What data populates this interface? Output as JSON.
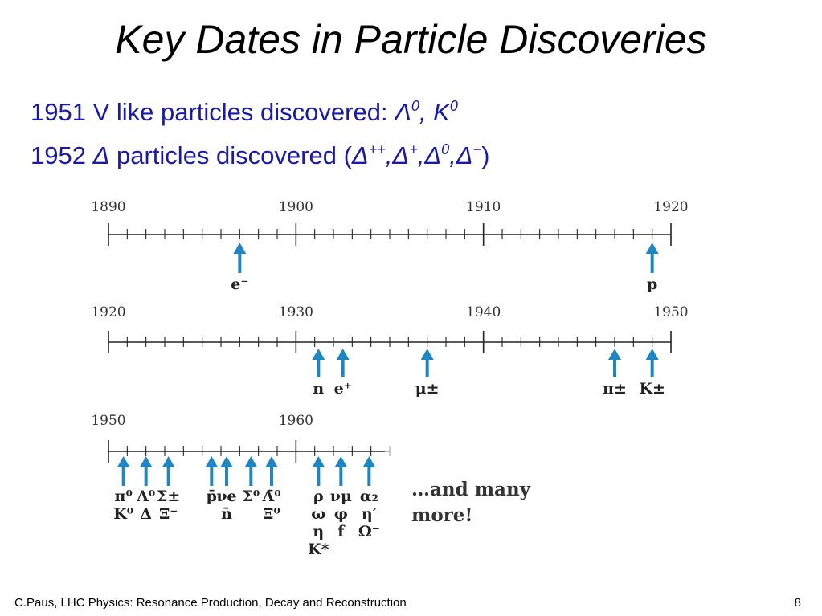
{
  "slide": {
    "title": "Key Dates in Particle Discoveries",
    "line1": {
      "text": "1951 V like particles discovered: ",
      "p1": "Λ",
      "p1_sup": "0",
      "sep": ", ",
      "p2": "K",
      "p2_sup": "0"
    },
    "line2": {
      "year": "1952 ",
      "delta": "Δ",
      "text": " particles discovered (",
      "d1": "Δ",
      "d1_sup": "++",
      "c1": ",",
      "d2": "Δ",
      "d2_sup": "+",
      "c2": ",",
      "d3": "Δ",
      "d3_sup": "0",
      "c3": ",",
      "d4": "Δ",
      "d4_sup": "−",
      "close": ")"
    },
    "footer_left": "C.Paus, LHC Physics:  Resonance Production, Decay and Reconstruction",
    "page_number": "8"
  },
  "colors": {
    "title": "#000000",
    "bullet_text": "#1a1aa6",
    "arrow": "#1f86c2",
    "timeline": "#222222"
  },
  "timelines": [
    {
      "decade_labels": [
        "1890",
        "1900",
        "1910",
        "1920"
      ],
      "discoveries": [
        {
          "year": 1897,
          "label": "e⁻"
        },
        {
          "year": 1919,
          "label": "p"
        }
      ]
    },
    {
      "decade_labels": [
        "1920",
        "1930",
        "1940",
        "1950"
      ],
      "discoveries": [
        {
          "year": 1931.2,
          "label": "n"
        },
        {
          "year": 1932.5,
          "label": "e⁺"
        },
        {
          "year": 1937,
          "label": "μ±"
        },
        {
          "year": 1947,
          "label": "π±"
        },
        {
          "year": 1949,
          "label": "K±"
        }
      ]
    },
    {
      "decade_labels": [
        "1950",
        "1960"
      ],
      "discoveries": [
        {
          "year": 1950.8,
          "label": "π⁰\nK⁰"
        },
        {
          "year": 1952,
          "label": "Λ⁰\nΔ"
        },
        {
          "year": 1953.2,
          "label": "Σ±\nΞ⁻"
        },
        {
          "year": 1955.5,
          "label": "p̄"
        },
        {
          "year": 1956.3,
          "label": "νe\nn̄"
        },
        {
          "year": 1957.6,
          "label": "Σ⁰"
        },
        {
          "year": 1958.7,
          "label": "Λ̄⁰\nΞ⁰"
        },
        {
          "year": 1961.2,
          "label": "ρ\nω\nη\nK*"
        },
        {
          "year": 1962.4,
          "label": "νμ\nφ\nf"
        },
        {
          "year": 1963.9,
          "label": "α₂\nη′\nΩ⁻"
        }
      ],
      "note": "…and many\nmore!"
    }
  ]
}
